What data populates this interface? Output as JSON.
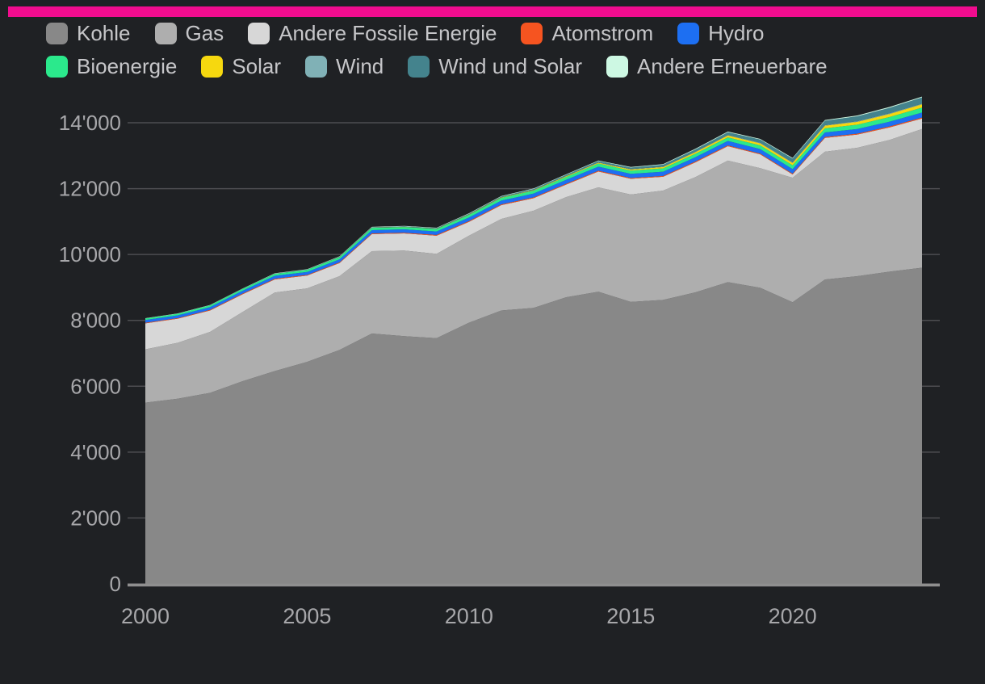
{
  "page": {
    "background_color": "#1f2124",
    "topbar_color": "#f10c8e",
    "grid_color": "#4d4d51",
    "axis_line_color": "#8f8f8f",
    "axis_label_color": "#a7a7aa",
    "legend_text_color": "#c6c6c9"
  },
  "legend": {
    "rows": [
      [
        {
          "label": "Kohle",
          "color": "#888888"
        },
        {
          "label": "Gas",
          "color": "#aeaeae"
        },
        {
          "label": "Andere Fossile Energie",
          "color": "#d7d7d7"
        },
        {
          "label": "Atomstrom",
          "color": "#f65420"
        },
        {
          "label": "Hydro",
          "color": "#1d6ff2"
        },
        {
          "label": "Bioenergie",
          "color": "#2be98c"
        },
        {
          "label": "Solar",
          "color": "#f6d80f"
        },
        {
          "label": "Wind",
          "color": "#80b1b6"
        },
        {
          "label": "Wind und Solar",
          "color": "#44838d"
        },
        {
          "label": "Andere Erneuerbare",
          "color": "#cdf8e3"
        }
      ]
    ],
    "row_break_after": 5
  },
  "chart_data": {
    "type": "area",
    "stacked": true,
    "grid": true,
    "legend_position": "top",
    "x": [
      2000,
      2001,
      2002,
      2003,
      2004,
      2005,
      2006,
      2007,
      2008,
      2009,
      2010,
      2011,
      2012,
      2013,
      2014,
      2015,
      2016,
      2017,
      2018,
      2019,
      2020,
      2021,
      2022,
      2023,
      2024
    ],
    "x_ticks": [
      2000,
      2005,
      2010,
      2015,
      2020
    ],
    "x_tick_labels": [
      "2000",
      "2005",
      "2010",
      "2015",
      "2020"
    ],
    "y_ticks": [
      0,
      2000,
      4000,
      6000,
      8000,
      10000,
      12000,
      14000
    ],
    "y_tick_labels": [
      "0",
      "2'000",
      "4'000",
      "6'000",
      "8'000",
      "10'000",
      "12'000",
      "14'000"
    ],
    "ylim": [
      0,
      14000
    ],
    "series": [
      {
        "name": "Kohle",
        "color": "#888888",
        "values": [
          5500,
          5620,
          5800,
          6150,
          6460,
          6740,
          7100,
          7600,
          7520,
          7460,
          7930,
          8300,
          8380,
          8700,
          8870,
          8560,
          8620,
          8850,
          9160,
          8990,
          8550,
          9240,
          9340,
          9480,
          9600
        ]
      },
      {
        "name": "Gas",
        "color": "#aeaeae",
        "values": [
          1620,
          1700,
          1850,
          2100,
          2385,
          2230,
          2240,
          2500,
          2600,
          2560,
          2640,
          2780,
          2950,
          3040,
          3170,
          3260,
          3320,
          3500,
          3690,
          3630,
          3780,
          3880,
          3900,
          4000,
          4210
        ]
      },
      {
        "name": "Andere Fossile Energie",
        "color": "#d7d7d7",
        "values": [
          790,
          730,
          650,
          540,
          400,
          390,
          400,
          520,
          520,
          550,
          420,
          420,
          380,
          380,
          480,
          480,
          420,
          450,
          440,
          420,
          100,
          420,
          400,
          380,
          320
        ]
      },
      {
        "name": "Atomstrom",
        "color": "#f65420",
        "values": [
          20,
          20,
          20,
          20,
          20,
          20,
          20,
          22,
          22,
          24,
          24,
          24,
          25,
          25,
          25,
          25,
          25,
          25,
          25,
          25,
          25,
          27,
          28,
          29,
          30
        ]
      },
      {
        "name": "Hydro",
        "color": "#1d6ff2",
        "values": [
          80,
          82,
          84,
          86,
          88,
          90,
          94,
          98,
          100,
          104,
          108,
          112,
          116,
          119,
          122,
          125,
          128,
          130,
          132,
          134,
          137,
          140,
          143,
          146,
          150
        ]
      },
      {
        "name": "Bioenergie",
        "color": "#2be98c",
        "values": [
          48,
          50,
          53,
          56,
          60,
          64,
          67,
          70,
          73,
          76,
          80,
          84,
          88,
          91,
          94,
          97,
          101,
          105,
          110,
          114,
          119,
          125,
          132,
          140,
          150
        ]
      },
      {
        "name": "Solar",
        "color": "#f6d80f",
        "values": [
          0,
          0,
          0,
          0,
          0,
          1,
          2,
          3,
          4,
          6,
          8,
          11,
          15,
          20,
          26,
          33,
          40,
          48,
          56,
          63,
          70,
          78,
          85,
          92,
          100
        ]
      },
      {
        "name": "Wind",
        "color": "#80b1b6",
        "values": [
          0,
          0,
          0,
          1,
          1,
          2,
          3,
          4,
          5,
          6,
          7,
          8,
          9,
          10,
          11,
          12,
          13,
          14,
          15,
          16,
          17,
          18,
          19,
          20,
          20
        ]
      },
      {
        "name": "Wind und Solar",
        "color": "#44838d",
        "values": [
          0,
          0,
          1,
          2,
          3,
          5,
          7,
          9,
          11,
          14,
          18,
          22,
          27,
          33,
          40,
          48,
          58,
          70,
          84,
          98,
          115,
          132,
          150,
          168,
          188
        ]
      },
      {
        "name": "Andere Erneuerbare",
        "color": "#cdf8e3",
        "values": [
          10,
          10,
          11,
          11,
          12,
          12,
          13,
          13,
          14,
          14,
          15,
          15,
          16,
          16,
          17,
          17,
          18,
          19,
          20,
          21,
          22,
          23,
          24,
          25,
          26
        ]
      }
    ]
  }
}
